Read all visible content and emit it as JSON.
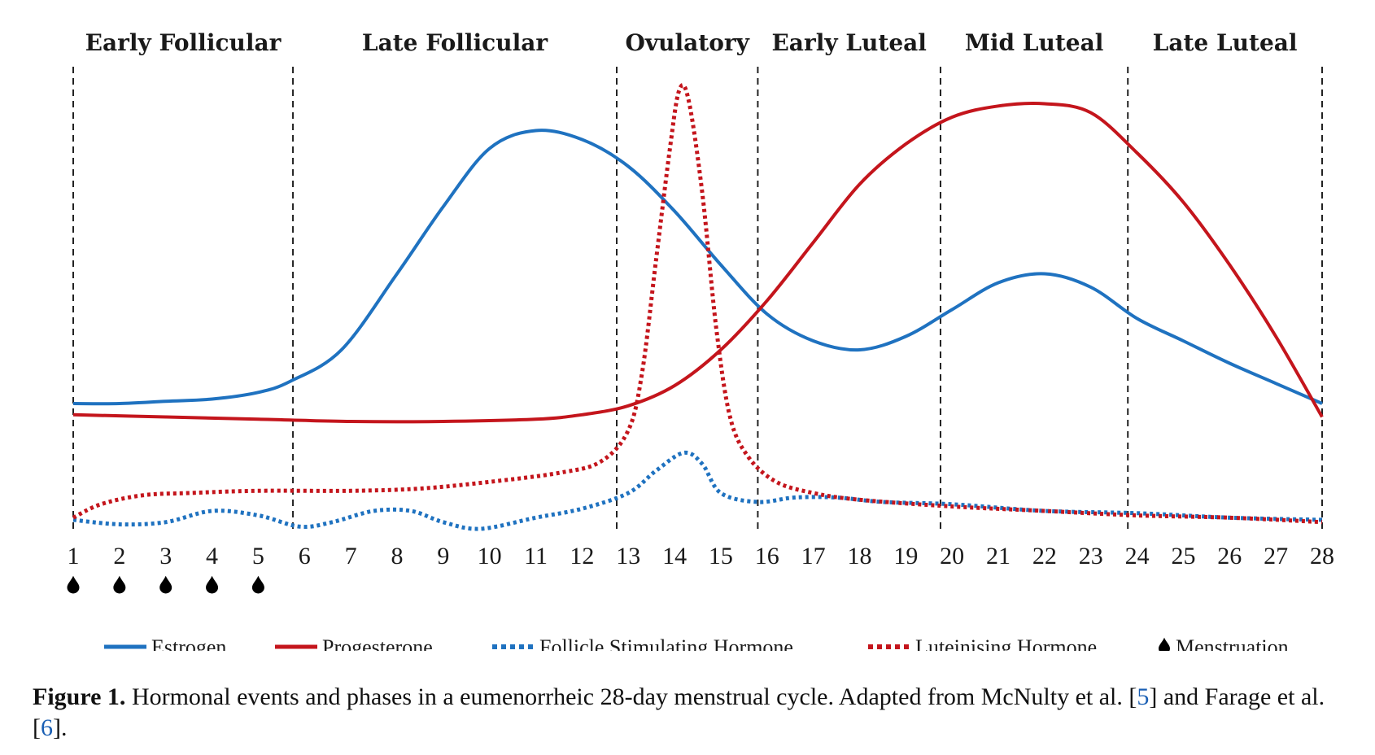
{
  "chart_data": {
    "type": "line",
    "x": [
      1,
      2,
      3,
      4,
      5,
      6,
      7,
      8,
      9,
      10,
      11,
      12,
      13,
      14,
      15,
      16,
      17,
      18,
      19,
      20,
      21,
      22,
      23,
      24,
      25,
      26,
      27,
      28
    ],
    "xlim": [
      1,
      28
    ],
    "ylim": [
      0,
      10
    ],
    "phases": [
      {
        "label": "Early Follicular",
        "start": 1,
        "end": 5.75
      },
      {
        "label": "Late Follicular",
        "start": 5.75,
        "end": 12.75
      },
      {
        "label": "Ovulatory",
        "start": 12.75,
        "end": 15.8
      },
      {
        "label": "Early Luteal",
        "start": 15.8,
        "end": 19.75
      },
      {
        "label": "Mid Luteal",
        "start": 19.75,
        "end": 23.8
      },
      {
        "label": "Late Luteal",
        "start": 23.8,
        "end": 28
      }
    ],
    "series": [
      {
        "name": "Estrogen",
        "color": "#1f72c0",
        "style": "solid",
        "points": [
          [
            1,
            2.8
          ],
          [
            2,
            2.8
          ],
          [
            3,
            2.85
          ],
          [
            4,
            2.9
          ],
          [
            5,
            3.05
          ],
          [
            5.7,
            3.3
          ],
          [
            6.8,
            4.0
          ],
          [
            8,
            5.7
          ],
          [
            9,
            7.2
          ],
          [
            10,
            8.5
          ],
          [
            11,
            8.9
          ],
          [
            12,
            8.7
          ],
          [
            13,
            8.1
          ],
          [
            14,
            7.1
          ],
          [
            15,
            5.9
          ],
          [
            16,
            4.8
          ],
          [
            17,
            4.2
          ],
          [
            18,
            4.0
          ],
          [
            19,
            4.3
          ],
          [
            20,
            4.9
          ],
          [
            21,
            5.5
          ],
          [
            22,
            5.7
          ],
          [
            23,
            5.4
          ],
          [
            24,
            4.7
          ],
          [
            25,
            4.2
          ],
          [
            26,
            3.7
          ],
          [
            27,
            3.25
          ],
          [
            28,
            2.8
          ]
        ]
      },
      {
        "name": "Progesterone",
        "color": "#c4151c",
        "style": "solid",
        "points": [
          [
            1,
            2.55
          ],
          [
            3,
            2.5
          ],
          [
            5,
            2.45
          ],
          [
            7,
            2.4
          ],
          [
            9,
            2.4
          ],
          [
            11,
            2.45
          ],
          [
            12,
            2.55
          ],
          [
            13,
            2.75
          ],
          [
            14,
            3.2
          ],
          [
            15,
            4.0
          ],
          [
            16,
            5.1
          ],
          [
            17,
            6.4
          ],
          [
            18,
            7.7
          ],
          [
            19,
            8.6
          ],
          [
            20,
            9.2
          ],
          [
            21,
            9.45
          ],
          [
            22,
            9.5
          ],
          [
            23,
            9.3
          ],
          [
            24,
            8.4
          ],
          [
            25,
            7.3
          ],
          [
            26,
            5.9
          ],
          [
            27,
            4.3
          ],
          [
            28,
            2.5
          ]
        ]
      },
      {
        "name": "Follicle Stimulating Hormone",
        "color": "#1f72c0",
        "style": "dotted",
        "points": [
          [
            1,
            0.2
          ],
          [
            2,
            0.1
          ],
          [
            3,
            0.15
          ],
          [
            4,
            0.4
          ],
          [
            5,
            0.3
          ],
          [
            5.9,
            0.05
          ],
          [
            6.6,
            0.15
          ],
          [
            7.5,
            0.4
          ],
          [
            8.3,
            0.4
          ],
          [
            9,
            0.15
          ],
          [
            9.8,
            0.0
          ],
          [
            11,
            0.25
          ],
          [
            12,
            0.45
          ],
          [
            13,
            0.8
          ],
          [
            13.6,
            1.3
          ],
          [
            14.2,
            1.7
          ],
          [
            14.6,
            1.45
          ],
          [
            15,
            0.8
          ],
          [
            15.8,
            0.6
          ],
          [
            16.6,
            0.7
          ],
          [
            17.5,
            0.7
          ],
          [
            18.5,
            0.6
          ],
          [
            20,
            0.55
          ],
          [
            22,
            0.4
          ],
          [
            24,
            0.35
          ],
          [
            26,
            0.25
          ],
          [
            28,
            0.2
          ]
        ]
      },
      {
        "name": "Luteinising Hormone",
        "color": "#c4151c",
        "style": "dotted",
        "points": [
          [
            1,
            0.25
          ],
          [
            1.6,
            0.55
          ],
          [
            2.5,
            0.75
          ],
          [
            3.5,
            0.8
          ],
          [
            5,
            0.85
          ],
          [
            7,
            0.85
          ],
          [
            8.5,
            0.9
          ],
          [
            10,
            1.05
          ],
          [
            11.5,
            1.25
          ],
          [
            12.4,
            1.5
          ],
          [
            13,
            2.2
          ],
          [
            13.3,
            3.5
          ],
          [
            13.6,
            6.0
          ],
          [
            13.9,
            8.5
          ],
          [
            14.1,
            9.8
          ],
          [
            14.3,
            9.6
          ],
          [
            14.6,
            7.5
          ],
          [
            14.9,
            4.5
          ],
          [
            15.2,
            2.5
          ],
          [
            15.6,
            1.6
          ],
          [
            16.2,
            1.05
          ],
          [
            17,
            0.8
          ],
          [
            18,
            0.65
          ],
          [
            20,
            0.5
          ],
          [
            22,
            0.4
          ],
          [
            24,
            0.3
          ],
          [
            26,
            0.25
          ],
          [
            28,
            0.15
          ]
        ]
      }
    ],
    "menstruation_days": [
      1,
      2,
      3,
      4,
      5
    ],
    "legend": [
      {
        "name": "Estrogen",
        "style": "solid",
        "color": "#1f72c0"
      },
      {
        "name": "Progesterone",
        "style": "solid",
        "color": "#c4151c"
      },
      {
        "name": "Follicle Stimulating Hormone",
        "style": "dotted",
        "color": "#1f72c0"
      },
      {
        "name": "Luteinising Hormone",
        "style": "dotted",
        "color": "#c4151c"
      },
      {
        "name": "Menstruation",
        "style": "drop-icon",
        "color": "#000000"
      }
    ],
    "legend_position": "bottom"
  },
  "caption": {
    "lead": "Figure 1.",
    "text_before_ref1": " Hormonal events and phases in a eumenorrheic 28-day menstrual cycle. Adapted from McNulty et al. [",
    "ref1": "5",
    "text_between": "] and Farage et al. [",
    "ref2": "6",
    "text_after": "]."
  }
}
